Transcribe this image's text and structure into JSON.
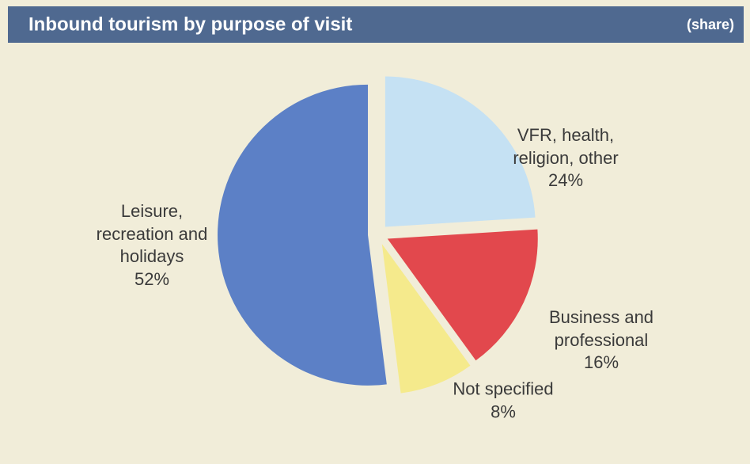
{
  "chart_data": {
    "type": "pie",
    "title": "Inbound tourism by purpose of visit",
    "subtitle": "(share)",
    "categories": [
      "VFR, health,\nreligion, other",
      "Business and\nprofessional",
      "Not specified",
      "Leisure,\nrecreation and\nholidays"
    ],
    "values": [
      24,
      16,
      8,
      52
    ],
    "value_labels": [
      "24%",
      "16%",
      "8%",
      "52%"
    ],
    "colors": [
      "#c5e1f3",
      "#e2484d",
      "#f5ea8c",
      "#5c80c6"
    ]
  }
}
